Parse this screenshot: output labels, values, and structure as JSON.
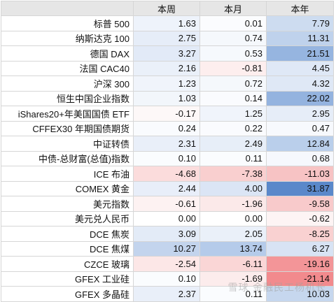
{
  "headers": [
    "",
    "本周",
    "本月",
    "本年"
  ],
  "rows": [
    {
      "name": "标普 500",
      "w": "1.63",
      "m": "0.01",
      "y": "7.79",
      "cw": "#eef3fb",
      "cm": "#fbfcfe",
      "cy": "#cddcf0"
    },
    {
      "name": "纳斯达克 100",
      "w": "2.75",
      "m": "0.74",
      "y": "11.31",
      "cw": "#e6edf8",
      "cm": "#f5f8fc",
      "cy": "#bfd2ec"
    },
    {
      "name": "德国 DAX",
      "w": "3.27",
      "m": "0.53",
      "y": "21.51",
      "cw": "#e2eaf7",
      "cm": "#f6f9fd",
      "cy": "#96b5e0"
    },
    {
      "name": "法国 CAC40",
      "w": "2.16",
      "m": "-0.81",
      "y": "4.45",
      "cw": "#eaf0f9",
      "cm": "#fdeeee",
      "cy": "#dfe8f6"
    },
    {
      "name": "沪深 300",
      "w": "1.23",
      "m": "0.72",
      "y": "4.32",
      "cw": "#f0f4fb",
      "cm": "#f5f8fc",
      "cy": "#dfe8f6"
    },
    {
      "name": "恒生中国企业指数",
      "w": "1.03",
      "m": "0.14",
      "y": "22.02",
      "cw": "#f2f6fb",
      "cm": "#fafbfe",
      "cy": "#94b3df"
    },
    {
      "name": "iShares20+年美国国债 ETF",
      "w": "-0.17",
      "m": "1.25",
      "y": "2.95",
      "cw": "#fdf8f8",
      "cm": "#f0f4fb",
      "cy": "#e6edf8"
    },
    {
      "name": "CFFEX30 年期国债期货",
      "w": "0.24",
      "m": "0.22",
      "y": "0.47",
      "cw": "#f9fbfe",
      "cm": "#fafbfe",
      "cy": "#f7f9fd"
    },
    {
      "name": "中证转债",
      "w": "2.31",
      "m": "2.49",
      "y": "12.84",
      "cw": "#e9eff9",
      "cm": "#e7eef8",
      "cy": "#bacfeb"
    },
    {
      "name": "中债-总财富(总值)指数",
      "w": "0.10",
      "m": "0.11",
      "y": "0.68",
      "cw": "#fafcfe",
      "cm": "#fafcfe",
      "cy": "#f6f8fd"
    },
    {
      "name": "ICE 布油",
      "w": "-4.68",
      "m": "-7.38",
      "y": "-11.03",
      "cw": "#fbdcdc",
      "cm": "#f9cfcf",
      "cy": "#f7c3c4"
    },
    {
      "name": "COMEX 黄金",
      "w": "2.44",
      "m": "4.00",
      "y": "31.87",
      "cw": "#e8eef9",
      "cm": "#dbe5f5",
      "cy": "#5a88ca"
    },
    {
      "name": "美元指数",
      "w": "-0.61",
      "m": "-1.96",
      "y": "-9.58",
      "cw": "#fdf2f2",
      "cm": "#fbe9e9",
      "cy": "#f8cacb"
    },
    {
      "name": "美元兑人民币",
      "w": "0.00",
      "m": "0.00",
      "y": "-0.62",
      "cw": "#ffffff",
      "cm": "#ffffff",
      "cy": "#fdf4f4"
    },
    {
      "name": "DCE 焦炭",
      "w": "3.09",
      "m": "2.05",
      "y": "-8.25",
      "cw": "#e3ebf7",
      "cm": "#eaf0f9",
      "cy": "#f9d1d1"
    },
    {
      "name": "DCE 焦煤",
      "w": "10.27",
      "m": "13.74",
      "y": "6.27",
      "cw": "#c3d4ed",
      "cm": "#b5cbea",
      "cy": "#d8e3f4"
    },
    {
      "name": "CZCE 玻璃",
      "w": "-2.54",
      "m": "-6.11",
      "y": "-19.16",
      "cw": "#fce7e7",
      "cm": "#fad6d6",
      "cy": "#f39598"
    },
    {
      "name": "GFEX 工业硅",
      "w": "0.10",
      "m": "-1.69",
      "y": "-21.14",
      "cw": "#fafcfe",
      "cm": "#fcecec",
      "cy": "#f28a8d"
    },
    {
      "name": "GFEX 多晶硅",
      "w": "2.37",
      "m": "0.11",
      "y": "10.03",
      "cw": "#e9eff9",
      "cm": "#fafcfe",
      "cy": "#c6d7ee"
    }
  ],
  "watermark": "雪球 金融民工杨机长"
}
